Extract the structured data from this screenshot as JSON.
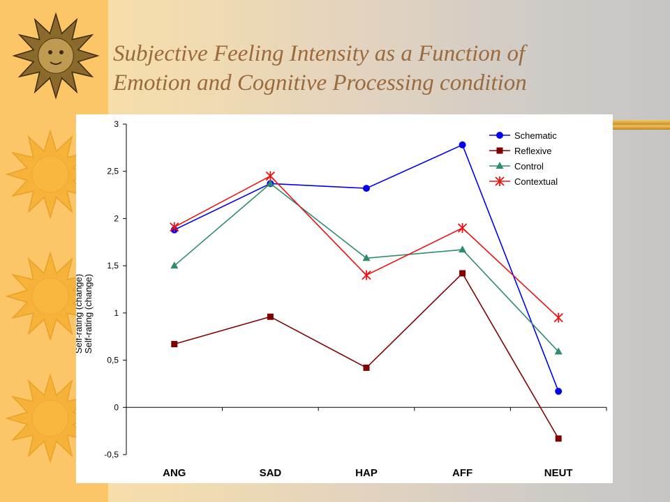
{
  "slide": {
    "title_line1": "Subjective Feeling Intensity as a Function of",
    "title_line2": "Emotion and Cognitive Processing condition"
  },
  "chart_data": {
    "type": "line",
    "title": "",
    "ylabel_overlay": "Self-rating (change)",
    "ylabel": "Self-rating (change)",
    "xlabel": "",
    "categories": [
      "ANG",
      "SAD",
      "HAP",
      "AFF",
      "NEUT"
    ],
    "ylim": [
      -0.5,
      3
    ],
    "yticks": [
      -0.5,
      0,
      0.5,
      1,
      1.5,
      2,
      2.5,
      3
    ],
    "ytick_labels": [
      "-0,5",
      "0",
      "0,5",
      "1",
      "1,5",
      "2",
      "2,5",
      "3"
    ],
    "legend_position": "top-right",
    "grid": false,
    "series": [
      {
        "name": "Schematic",
        "values": [
          1.88,
          2.37,
          2.32,
          2.78,
          0.17
        ],
        "color": "#0000ee",
        "marker": "circle"
      },
      {
        "name": "Reflexive",
        "values": [
          0.67,
          0.96,
          0.42,
          1.42,
          -0.33
        ],
        "color": "#800000",
        "marker": "square"
      },
      {
        "name": "Control",
        "values": [
          1.5,
          2.37,
          1.58,
          1.67,
          0.59
        ],
        "color": "#2e8b6e",
        "marker": "triangle"
      },
      {
        "name": "Contextual",
        "values": [
          1.91,
          2.45,
          1.4,
          1.9,
          0.95
        ],
        "color": "#ee1111",
        "marker": "star"
      }
    ]
  }
}
